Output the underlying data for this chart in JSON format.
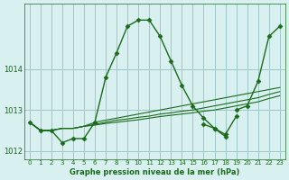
{
  "title": "Graphe pression niveau de la mer (hPa)",
  "bg_color": "#d8f0f0",
  "grid_color": "#a0c8c8",
  "line_color": "#1a6b1a",
  "hours": [
    0,
    1,
    2,
    3,
    4,
    5,
    6,
    7,
    8,
    9,
    10,
    11,
    12,
    13,
    14,
    15,
    16,
    17,
    18,
    19,
    20,
    21,
    22,
    23
  ],
  "series": [
    {
      "values": [
        1012.7,
        1012.5,
        1012.5,
        1012.2,
        1012.3,
        1012.3,
        1012.7,
        1013.8,
        1014.4,
        1015.05,
        1015.2,
        1015.2,
        1014.8,
        1014.2,
        1013.6,
        1013.1,
        1012.8,
        1012.55,
        1012.35,
        null,
        null,
        null,
        null,
        null
      ],
      "lw": 1.0,
      "marker": true,
      "linestyle": "-"
    },
    {
      "values": [
        null,
        null,
        null,
        null,
        null,
        null,
        null,
        null,
        null,
        null,
        null,
        null,
        null,
        null,
        null,
        null,
        1012.65,
        1012.55,
        1012.4,
        1012.85,
        null,
        null,
        null,
        null
      ],
      "lw": 1.0,
      "marker": true,
      "linestyle": "-"
    },
    {
      "values": [
        null,
        null,
        null,
        null,
        null,
        null,
        null,
        null,
        null,
        null,
        null,
        null,
        null,
        null,
        null,
        null,
        null,
        null,
        null,
        1013.0,
        1013.1,
        1013.7,
        1014.8,
        1015.05
      ],
      "lw": 1.0,
      "marker": true,
      "linestyle": "-"
    },
    {
      "values": [
        1012.7,
        1012.5,
        1012.5,
        1012.55,
        1012.55,
        1012.6,
        1012.7,
        1012.75,
        1012.8,
        1012.85,
        1012.9,
        1012.95,
        1013.0,
        1013.05,
        1013.1,
        1013.15,
        1013.2,
        1013.25,
        1013.3,
        1013.35,
        1013.4,
        1013.45,
        1013.5,
        1013.55
      ],
      "lw": 0.8,
      "marker": false,
      "linestyle": "-"
    },
    {
      "values": [
        1012.7,
        1012.5,
        1012.5,
        1012.55,
        1012.55,
        1012.6,
        1012.65,
        1012.7,
        1012.75,
        1012.78,
        1012.82,
        1012.85,
        1012.9,
        1012.93,
        1012.97,
        1013.0,
        1013.05,
        1013.1,
        1013.15,
        1013.2,
        1013.25,
        1013.3,
        1013.38,
        1013.45
      ],
      "lw": 0.8,
      "marker": false,
      "linestyle": "-"
    },
    {
      "values": [
        1012.7,
        1012.5,
        1012.5,
        1012.55,
        1012.55,
        1012.6,
        1012.63,
        1012.67,
        1012.7,
        1012.73,
        1012.76,
        1012.8,
        1012.84,
        1012.87,
        1012.9,
        1012.93,
        1012.97,
        1013.0,
        1013.05,
        1013.1,
        1013.15,
        1013.2,
        1013.28,
        1013.35
      ],
      "lw": 0.8,
      "marker": false,
      "linestyle": "-"
    }
  ],
  "ylim": [
    1011.8,
    1015.6
  ],
  "yticks": [
    1012,
    1013,
    1014
  ],
  "xlim": [
    -0.5,
    23.5
  ],
  "xticks": [
    0,
    1,
    2,
    3,
    4,
    5,
    6,
    7,
    8,
    9,
    10,
    11,
    12,
    13,
    14,
    15,
    16,
    17,
    18,
    19,
    20,
    21,
    22,
    23
  ]
}
